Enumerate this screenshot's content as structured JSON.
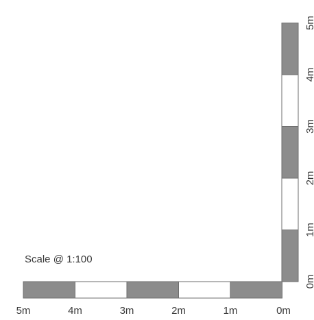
{
  "title": "Scale @ 1:100",
  "colors": {
    "filled": "#8c8c8c",
    "empty": "#ffffff",
    "outline": "#6e6e6e",
    "text": "#3a3a3a"
  },
  "horizontal_bar": {
    "tick_labels": [
      "5m",
      "4m",
      "3m",
      "2m",
      "1m",
      "0m"
    ],
    "segments": [
      "filled",
      "empty",
      "filled",
      "empty",
      "filled"
    ]
  },
  "vertical_bar": {
    "tick_labels": [
      "0m",
      "1m",
      "2m",
      "3m",
      "4m",
      "5m"
    ],
    "segments": [
      "filled",
      "empty",
      "filled",
      "empty",
      "filled"
    ]
  }
}
